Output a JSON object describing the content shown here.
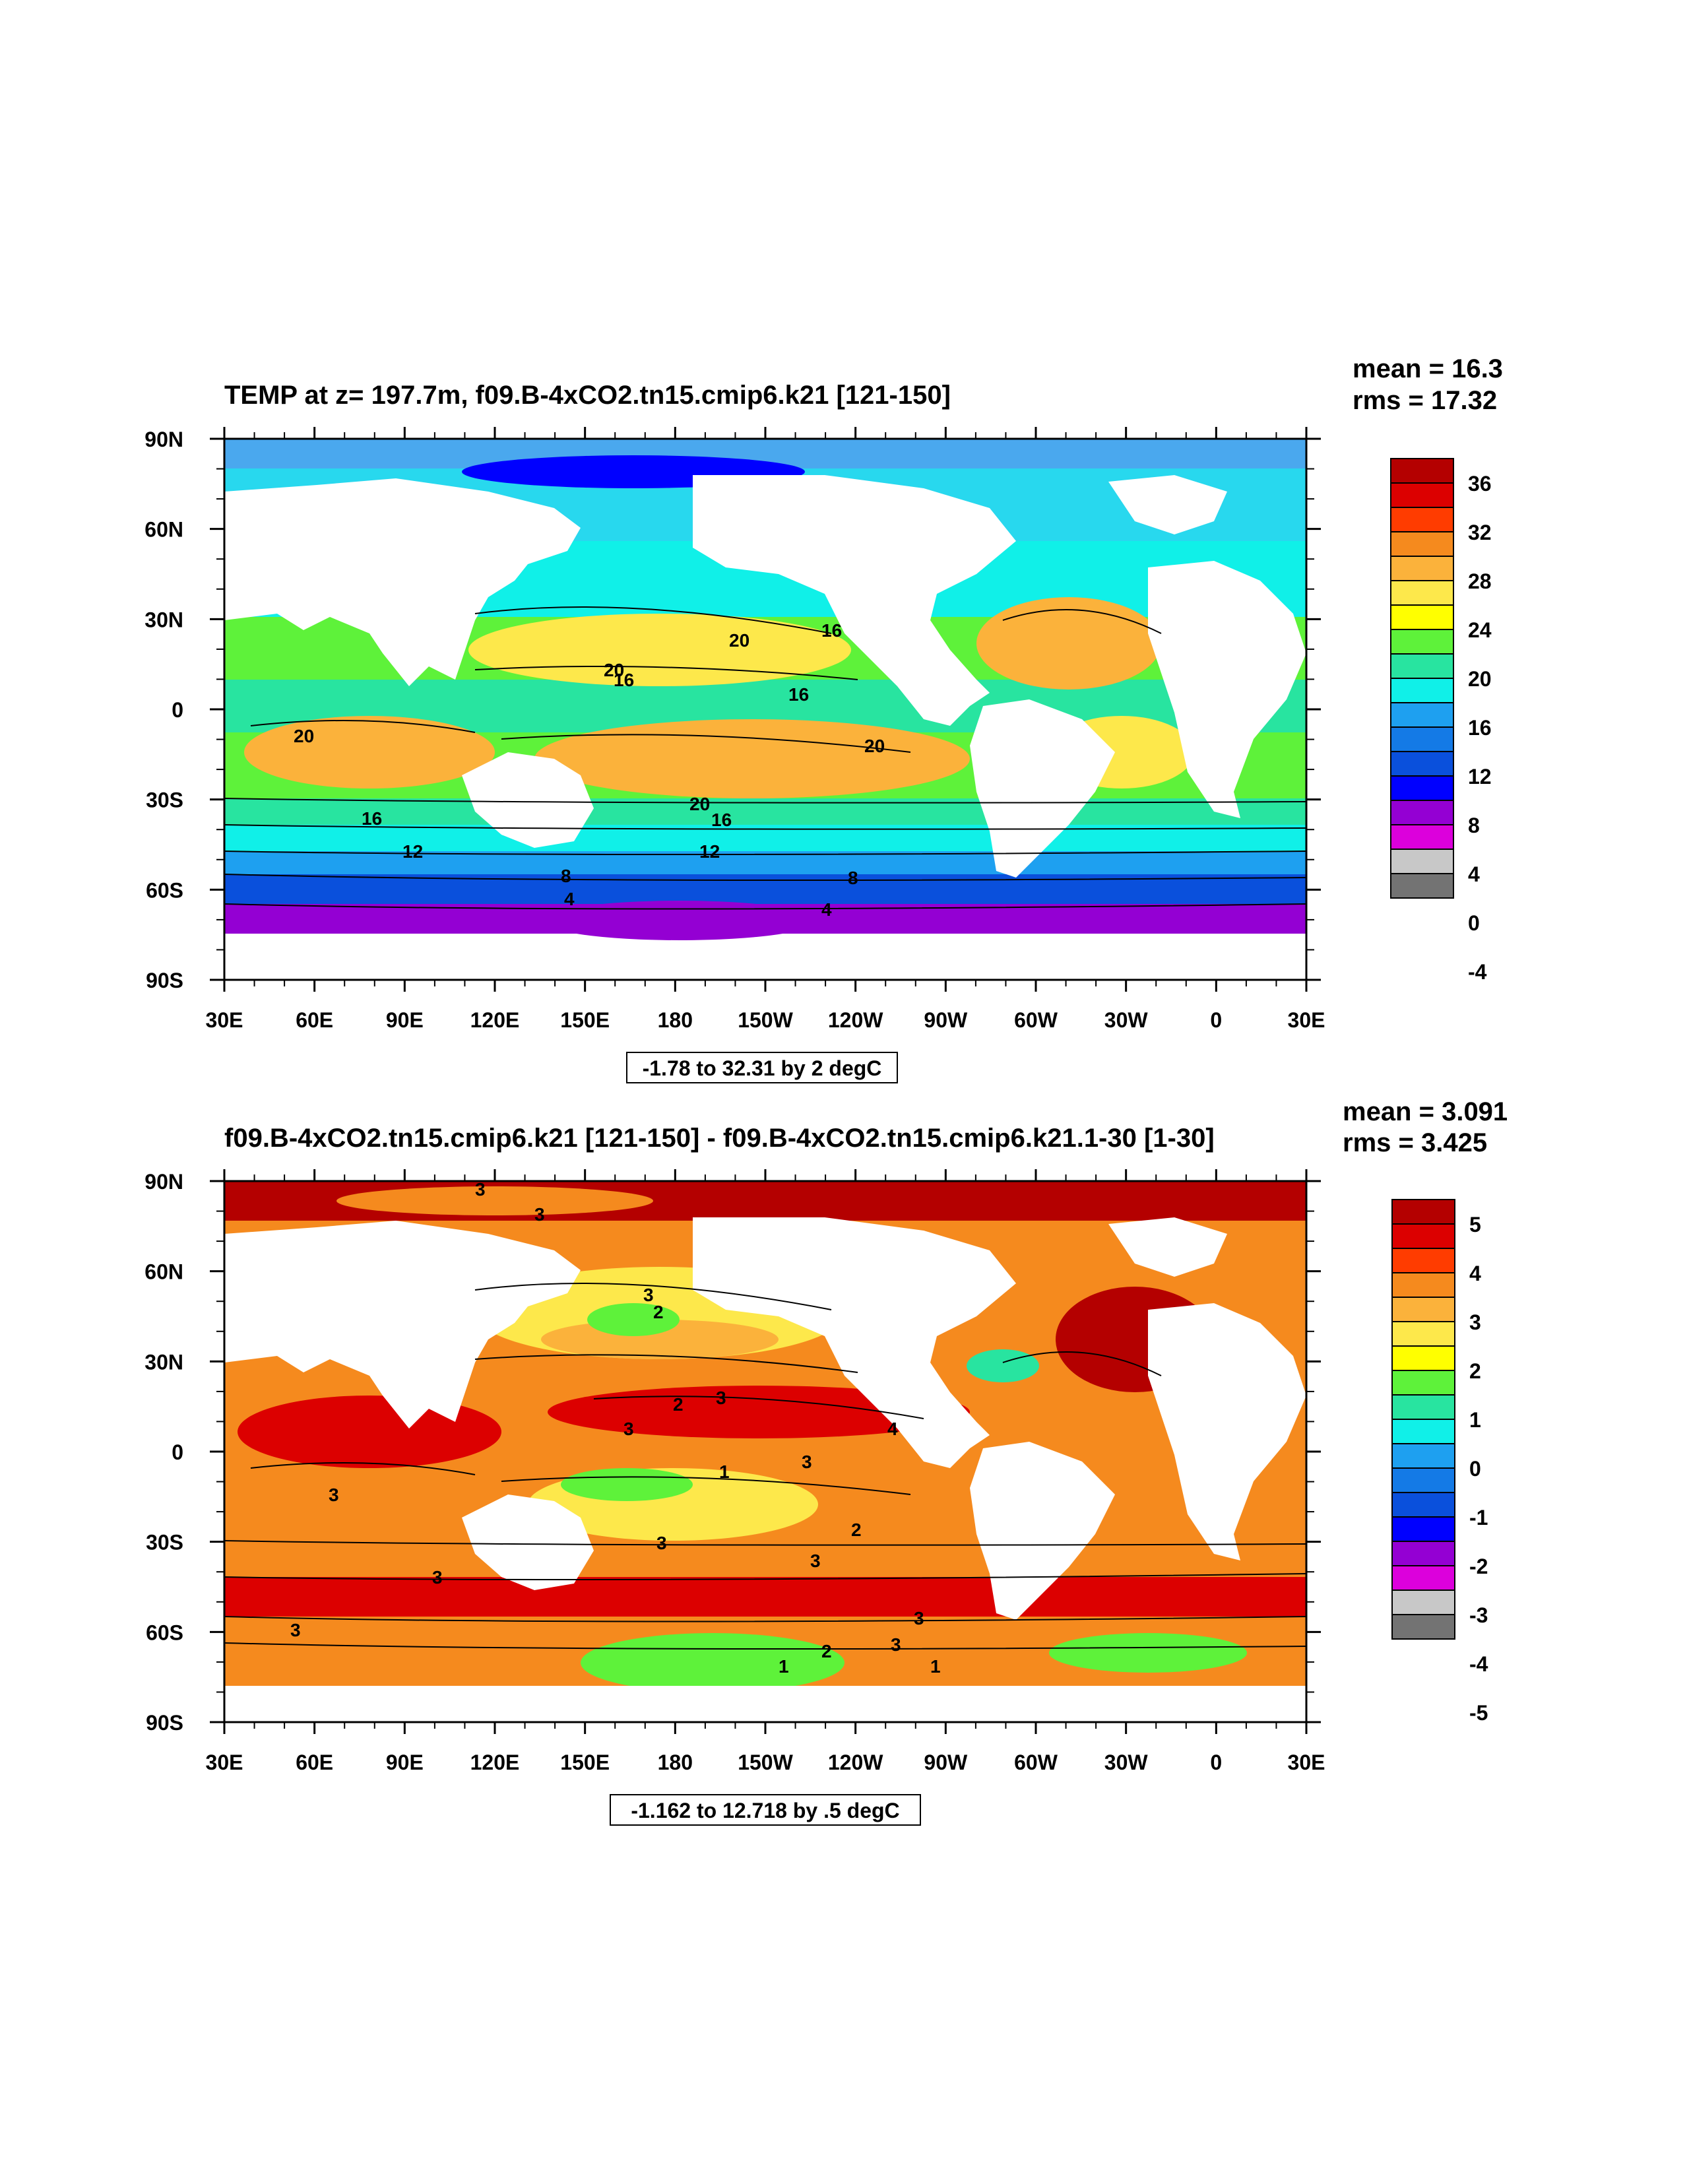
{
  "panels": [
    {
      "title": "TEMP at z= 197.7m, f09.B-4xCO2.tn15.cmip6.k21 [121-150]",
      "mean": "mean = 16.3",
      "rms": "rms = 17.32",
      "range_note": "-1.78 to 32.31 by 2 degC",
      "x_ticks": [
        "30E",
        "60E",
        "90E",
        "120E",
        "150E",
        "180",
        "150W",
        "120W",
        "90W",
        "60W",
        "30W",
        "0",
        "30E"
      ],
      "y_ticks": [
        "90N",
        "60N",
        "30N",
        "0",
        "30S",
        "60S",
        "90S"
      ],
      "colorbar": {
        "labels": [
          "36",
          "32",
          "28",
          "24",
          "20",
          "16",
          "12",
          "8",
          "4",
          "0",
          "-4"
        ],
        "colors": [
          "#b40000",
          "#dc0000",
          "#ff3c00",
          "#f58a1e",
          "#fbb23b",
          "#fde84b",
          "#ffff00",
          "#5ef23a",
          "#28e4a0",
          "#10f0e8",
          "#1ea0f0",
          "#147ae6",
          "#0a50dc",
          "#0000ff",
          "#9400d3",
          "#dc00dc",
          "#c8c8c8",
          "#737373"
        ]
      },
      "contour_labels": [
        "20",
        "16",
        "20",
        "16",
        "16",
        "20",
        "20",
        "20",
        "16",
        "16",
        "12",
        "12",
        "8",
        "8",
        "4",
        "4"
      ]
    },
    {
      "title": "f09.B-4xCO2.tn15.cmip6.k21 [121-150] - f09.B-4xCO2.tn15.cmip6.k21.1-30 [1-30]",
      "mean": "mean = 3.091",
      "rms": "rms = 3.425",
      "range_note": "-1.162 to 12.718 by .5 degC",
      "x_ticks": [
        "30E",
        "60E",
        "90E",
        "120E",
        "150E",
        "180",
        "150W",
        "120W",
        "90W",
        "60W",
        "30W",
        "0",
        "30E"
      ],
      "y_ticks": [
        "90N",
        "60N",
        "30N",
        "0",
        "30S",
        "60S",
        "90S"
      ],
      "colorbar": {
        "labels": [
          "5",
          "4",
          "3",
          "2",
          "1",
          "0",
          "-1",
          "-2",
          "-3",
          "-4",
          "-5"
        ],
        "colors": [
          "#b40000",
          "#dc0000",
          "#ff3c00",
          "#f58a1e",
          "#fbb23b",
          "#fde84b",
          "#ffff00",
          "#5ef23a",
          "#28e4a0",
          "#10f0e8",
          "#1ea0f0",
          "#147ae6",
          "#0a50dc",
          "#0000ff",
          "#9400d3",
          "#dc00dc",
          "#c8c8c8",
          "#737373"
        ]
      },
      "contour_labels": [
        "3",
        "3",
        "3",
        "2",
        "3",
        "3",
        "2",
        "1",
        "4",
        "3",
        "3",
        "3",
        "2",
        "3",
        "3",
        "3",
        "3",
        "1",
        "2",
        "3",
        "1"
      ]
    }
  ]
}
